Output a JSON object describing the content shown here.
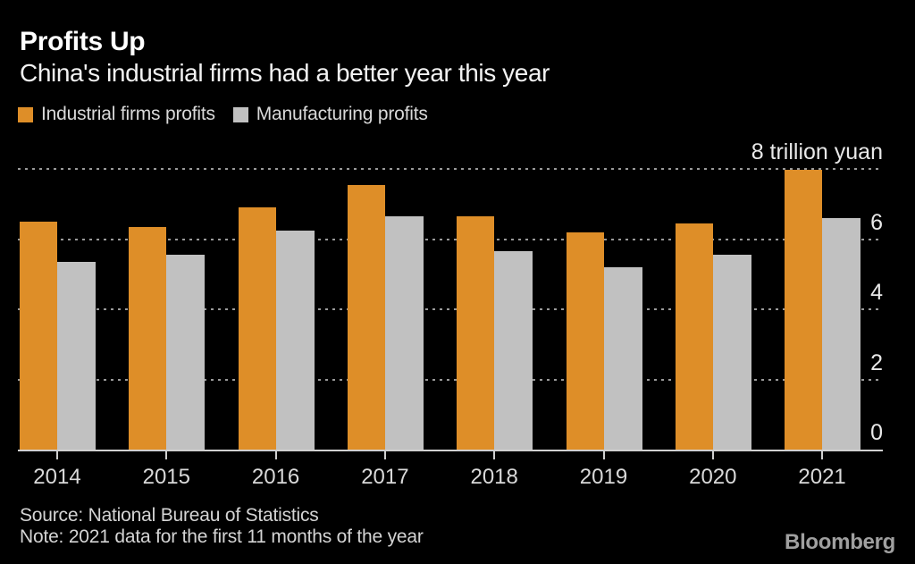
{
  "header": {
    "title": "Profits Up",
    "subtitle": "China's industrial firms had a better year this year"
  },
  "legend": {
    "items": [
      {
        "label": "Industrial firms profits",
        "color": "#de8e28"
      },
      {
        "label": "Manufacturing profits",
        "color": "#c1c1c1"
      }
    ]
  },
  "chart_data": {
    "type": "bar",
    "categories": [
      "2014",
      "2015",
      "2016",
      "2017",
      "2018",
      "2019",
      "2020",
      "2021"
    ],
    "series": [
      {
        "name": "Industrial firms profits",
        "color": "#de8e28",
        "values": [
          6.5,
          6.35,
          6.9,
          7.55,
          6.65,
          6.2,
          6.45,
          7.98
        ]
      },
      {
        "name": "Manufacturing profits",
        "color": "#c1c1c1",
        "values": [
          5.35,
          5.55,
          6.25,
          6.65,
          5.65,
          5.2,
          5.55,
          6.6
        ]
      }
    ],
    "title": "Profits Up",
    "subtitle": "China's industrial firms had a better year this year",
    "xlabel": "",
    "ylabel": "trillion yuan",
    "ylim": [
      0,
      8
    ],
    "yticks": [
      0,
      2,
      4,
      6,
      8
    ],
    "ytick_labels": [
      "0",
      "2",
      "4",
      "6",
      "8 trillion yuan"
    ],
    "grid": "horizontal-dotted",
    "legend_position": "top-left",
    "background": "#000000"
  },
  "footer": {
    "source": "Source: National Bureau of Statistics",
    "note": "Note: 2021 data for the first 11 months of the year",
    "brand": "Bloomberg"
  }
}
